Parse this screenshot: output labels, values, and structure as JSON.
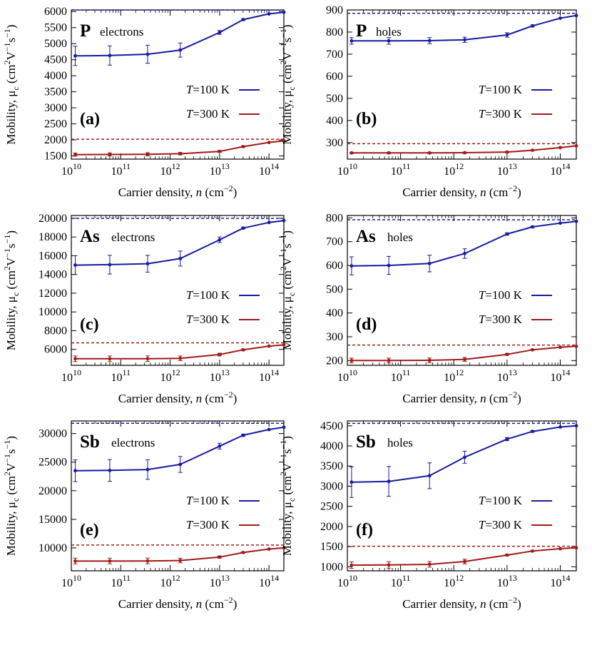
{
  "chart_data": [
    {
      "type": "line",
      "panel_label": "(a)",
      "element": "P",
      "carrier": "electrons",
      "xlabel": "Carrier density, n (cm−2)",
      "ylabel": "Mobility, μc (cm2V−1s−1)",
      "xscale": "log",
      "xlim": [
        10000000000.0,
        200000000000000.0
      ],
      "xticks": [
        "10^10",
        "10^11",
        "10^12",
        "10^13",
        "10^14"
      ],
      "ylim": [
        1400,
        6050
      ],
      "yticks": [
        1500,
        2000,
        2500,
        3000,
        3500,
        4000,
        4500,
        5000,
        5500,
        6000
      ],
      "legend": [
        "T=100 K",
        "T=300 K"
      ],
      "legend_position": "right",
      "series": [
        {
          "name": "T=100 K",
          "color": "#1a1aa0",
          "limit": 6050,
          "x": [
            12000000000.0,
            60000000000.0,
            350000000000.0,
            1600000000000.0,
            10000000000000.0,
            30000000000000.0,
            100000000000000.0,
            200000000000000.0
          ],
          "y": [
            4620,
            4630,
            4670,
            4800,
            5350,
            5750,
            5930,
            5980
          ],
          "err": [
            300,
            300,
            280,
            220,
            60,
            30,
            0,
            0
          ]
        },
        {
          "name": "T=300 K",
          "color": "#a01a1a",
          "limit": 2020,
          "x": [
            12000000000.0,
            60000000000.0,
            350000000000.0,
            1600000000000.0,
            10000000000000.0,
            30000000000000.0,
            100000000000000.0,
            200000000000000.0
          ],
          "y": [
            1540,
            1545,
            1550,
            1570,
            1640,
            1790,
            1920,
            1970
          ],
          "err": [
            50,
            50,
            50,
            40,
            30,
            20,
            0,
            0
          ]
        }
      ]
    },
    {
      "type": "line",
      "panel_label": "(b)",
      "element": "P",
      "carrier": "holes",
      "xlabel": "Carrier density, n (cm−2)",
      "ylabel": "Mobility, μc (cm2V−1s−1)",
      "xscale": "log",
      "xlim": [
        10000000000.0,
        200000000000000.0
      ],
      "xticks": [
        "10^10",
        "10^11",
        "10^12",
        "10^13",
        "10^14"
      ],
      "ylim": [
        225,
        900
      ],
      "yticks": [
        300,
        400,
        500,
        600,
        700,
        800,
        900
      ],
      "legend": [
        "T=100 K",
        "T=300 K"
      ],
      "legend_position": "right",
      "series": [
        {
          "name": "T=100 K",
          "color": "#1a1aa0",
          "limit": 885,
          "x": [
            12000000000.0,
            60000000000.0,
            350000000000.0,
            1600000000000.0,
            10000000000000.0,
            30000000000000.0,
            100000000000000.0,
            200000000000000.0
          ],
          "y": [
            760,
            760,
            761,
            765,
            787,
            828,
            863,
            875
          ],
          "err": [
            15,
            15,
            14,
            12,
            10,
            5,
            0,
            0
          ]
        },
        {
          "name": "T=300 K",
          "color": "#a01a1a",
          "limit": 295,
          "x": [
            12000000000.0,
            60000000000.0,
            350000000000.0,
            1600000000000.0,
            10000000000000.0,
            30000000000000.0,
            100000000000000.0,
            200000000000000.0
          ],
          "y": [
            253,
            253,
            253,
            254,
            257,
            265,
            277,
            285
          ],
          "err": [
            3,
            3,
            3,
            3,
            3,
            2,
            0,
            0
          ]
        }
      ]
    },
    {
      "type": "line",
      "panel_label": "(c)",
      "element": "As",
      "carrier": "electrons",
      "xlabel": "Carrier density, n (cm−2)",
      "ylabel": "Mobility, μc (cm2V−1s−1)",
      "xscale": "log",
      "xlim": [
        10000000000.0,
        200000000000000.0
      ],
      "xticks": [
        "10^10",
        "10^11",
        "10^12",
        "10^13",
        "10^14"
      ],
      "ylim": [
        4300,
        20300
      ],
      "yticks": [
        6000,
        8000,
        10000,
        12000,
        14000,
        16000,
        18000,
        20000
      ],
      "legend": [
        "T=100 K",
        "T=300 K"
      ],
      "legend_position": "right",
      "series": [
        {
          "name": "T=100 K",
          "color": "#1a1aa0",
          "limit": 20000,
          "x": [
            12000000000.0,
            60000000000.0,
            350000000000.0,
            1600000000000.0,
            10000000000000.0,
            30000000000000.0,
            100000000000000.0,
            200000000000000.0
          ],
          "y": [
            15000,
            15050,
            15150,
            15700,
            17700,
            18950,
            19550,
            19750
          ],
          "err": [
            1000,
            1000,
            900,
            800,
            300,
            100,
            0,
            0
          ]
        },
        {
          "name": "T=300 K",
          "color": "#a01a1a",
          "limit": 6700,
          "x": [
            12000000000.0,
            60000000000.0,
            350000000000.0,
            1600000000000.0,
            10000000000000.0,
            30000000000000.0,
            100000000000000.0,
            200000000000000.0
          ],
          "y": [
            5000,
            5000,
            5010,
            5050,
            5450,
            5950,
            6350,
            6480
          ],
          "err": [
            300,
            300,
            300,
            250,
            150,
            80,
            0,
            0
          ]
        }
      ]
    },
    {
      "type": "line",
      "panel_label": "(d)",
      "element": "As",
      "carrier": "holes",
      "xlabel": "Carrier density, n (cm−2)",
      "ylabel": "Mobility, μc (cm2V−1s−1)",
      "xscale": "log",
      "xlim": [
        10000000000.0,
        200000000000000.0
      ],
      "xticks": [
        "10^10",
        "10^11",
        "10^12",
        "10^13",
        "10^14"
      ],
      "ylim": [
        180,
        810
      ],
      "yticks": [
        200,
        300,
        400,
        500,
        600,
        700,
        800
      ],
      "legend": [
        "T=100 K",
        "T=300 K"
      ],
      "legend_position": "right",
      "series": [
        {
          "name": "T=100 K",
          "color": "#1a1aa0",
          "limit": 792,
          "x": [
            12000000000.0,
            60000000000.0,
            350000000000.0,
            1600000000000.0,
            10000000000000.0,
            30000000000000.0,
            100000000000000.0,
            200000000000000.0
          ],
          "y": [
            598,
            600,
            608,
            650,
            732,
            762,
            778,
            785
          ],
          "err": [
            38,
            38,
            35,
            20,
            5,
            3,
            0,
            0
          ]
        },
        {
          "name": "T=300 K",
          "color": "#a01a1a",
          "limit": 265,
          "x": [
            12000000000.0,
            60000000000.0,
            350000000000.0,
            1600000000000.0,
            10000000000000.0,
            30000000000000.0,
            100000000000000.0,
            200000000000000.0
          ],
          "y": [
            200,
            200,
            201,
            205,
            226,
            245,
            256,
            260
          ],
          "err": [
            10,
            10,
            10,
            8,
            4,
            2,
            0,
            0
          ]
        }
      ]
    },
    {
      "type": "line",
      "panel_label": "(e)",
      "element": "Sb",
      "carrier": "electrons",
      "xlabel": "Carrier density, n (cm−2)",
      "ylabel": "Mobility, μc (cm2V−1s−1)",
      "xscale": "log",
      "xlim": [
        10000000000.0,
        200000000000000.0
      ],
      "xticks": [
        "10^10",
        "10^11",
        "10^12",
        "10^13",
        "10^14"
      ],
      "ylim": [
        6000,
        32200
      ],
      "yticks": [
        10000,
        15000,
        20000,
        25000,
        30000
      ],
      "legend": [
        "T=100 K",
        "T=300 K"
      ],
      "legend_position": "right",
      "series": [
        {
          "name": "T=100 K",
          "color": "#1a1aa0",
          "limit": 31800,
          "x": [
            12000000000.0,
            60000000000.0,
            350000000000.0,
            1600000000000.0,
            10000000000000.0,
            30000000000000.0,
            100000000000000.0,
            200000000000000.0
          ],
          "y": [
            23500,
            23550,
            23700,
            24600,
            27800,
            29700,
            30700,
            31100
          ],
          "err": [
            1900,
            1900,
            1700,
            1400,
            500,
            200,
            0,
            0
          ]
        },
        {
          "name": "T=300 K",
          "color": "#a01a1a",
          "limit": 10500,
          "x": [
            12000000000.0,
            60000000000.0,
            350000000000.0,
            1600000000000.0,
            10000000000000.0,
            30000000000000.0,
            100000000000000.0,
            200000000000000.0
          ],
          "y": [
            7700,
            7700,
            7720,
            7800,
            8400,
            9200,
            9800,
            10000
          ],
          "err": [
            500,
            500,
            500,
            400,
            200,
            100,
            0,
            0
          ]
        }
      ]
    },
    {
      "type": "line",
      "panel_label": "(f)",
      "element": "Sb",
      "carrier": "holes",
      "xlabel": "Carrier density, n (cm−2)",
      "ylabel": "Mobility, μc (cm2V−1s−1)",
      "xscale": "log",
      "xlim": [
        10000000000.0,
        200000000000000.0
      ],
      "xticks": [
        "10^10",
        "10^11",
        "10^12",
        "10^13",
        "10^14"
      ],
      "ylim": [
        900,
        4620
      ],
      "yticks": [
        1000,
        1500,
        2000,
        2500,
        3000,
        3500,
        4000,
        4500
      ],
      "legend": [
        "T=100 K",
        "T=300 K"
      ],
      "legend_position": "right",
      "series": [
        {
          "name": "T=100 K",
          "color": "#1a1aa0",
          "limit": 4560,
          "x": [
            12000000000.0,
            60000000000.0,
            350000000000.0,
            1600000000000.0,
            10000000000000.0,
            30000000000000.0,
            100000000000000.0,
            200000000000000.0
          ],
          "y": [
            3100,
            3120,
            3260,
            3720,
            4170,
            4360,
            4470,
            4500
          ],
          "err": [
            380,
            370,
            320,
            150,
            40,
            20,
            0,
            0
          ]
        },
        {
          "name": "T=300 K",
          "color": "#a01a1a",
          "limit": 1510,
          "x": [
            12000000000.0,
            60000000000.0,
            350000000000.0,
            1600000000000.0,
            10000000000000.0,
            30000000000000.0,
            100000000000000.0,
            200000000000000.0
          ],
          "y": [
            1040,
            1045,
            1060,
            1130,
            1290,
            1390,
            1450,
            1470
          ],
          "err": [
            80,
            80,
            70,
            60,
            20,
            10,
            0,
            0
          ]
        }
      ]
    }
  ]
}
